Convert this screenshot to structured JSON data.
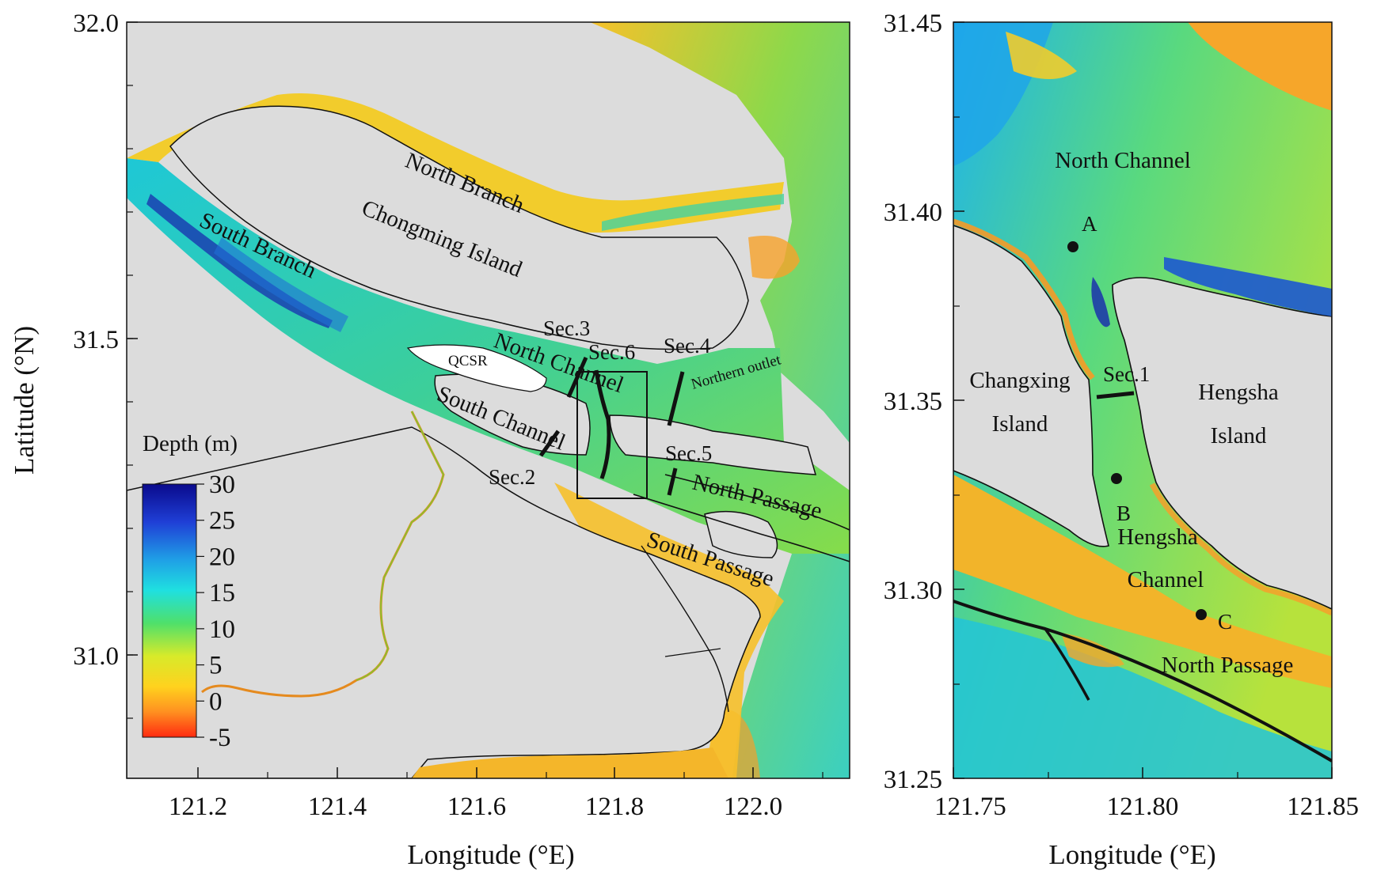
{
  "colors": {
    "land": "#dcdcdc",
    "shallow": "#f5d02a",
    "medium": "#7fd34a",
    "deep": "#22c4cf",
    "verydeep": "#1a3fb0",
    "outline": "#111111"
  },
  "left_map": {
    "x_ticks": [
      "121.2",
      "121.4",
      "121.6",
      "121.8",
      "122.0"
    ],
    "y_ticks": [
      "32.0",
      "31.5",
      "31.0"
    ],
    "xlabel": "Longitude (°E)",
    "ylabel": "Latitude (°N)",
    "colorbar": {
      "title": "Depth (m)",
      "ticks": [
        "30",
        "25",
        "20",
        "15",
        "10",
        "5",
        "0",
        "-5"
      ]
    },
    "labels": {
      "north_branch": "North Branch",
      "south_branch": "South Branch",
      "chongming": "Chongming Island",
      "north_channel": "North Channel",
      "south_channel": "South Channel",
      "north_passage": "North Passage",
      "south_passage": "South Passage",
      "qcsr": "QCSR",
      "northern_outlet": "Northern outlet",
      "sec2": "Sec.2",
      "sec3": "Sec.3",
      "sec4": "Sec.4",
      "sec5": "Sec.5",
      "sec6": "Sec.6"
    }
  },
  "right_map": {
    "x_ticks": [
      "121.75",
      "121.80",
      "121.85"
    ],
    "y_ticks": [
      "31.45",
      "31.40",
      "31.35",
      "31.30",
      "31.25"
    ],
    "xlabel": "Longitude (°E)",
    "labels": {
      "north_channel": "North Channel",
      "changxing1": "Changxing",
      "changxing2": "Island",
      "hengsha1": "Hengsha",
      "hengsha2": "Island",
      "hengsha_ch1": "Hengsha",
      "hengsha_ch2": "Channel",
      "north_passage": "North Passage",
      "sec1": "Sec.1",
      "pt_a": "A",
      "pt_b": "B",
      "pt_c": "C"
    }
  }
}
